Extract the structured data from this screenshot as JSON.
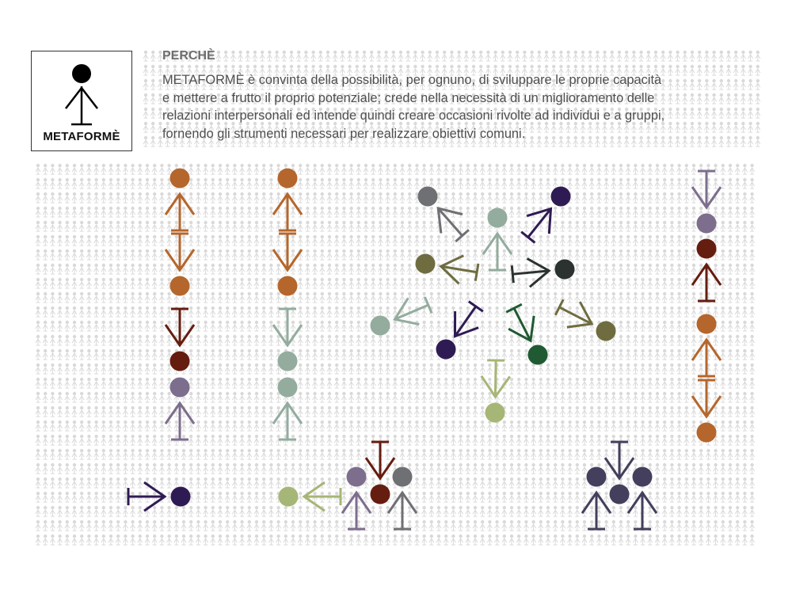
{
  "logo": {
    "name": "METAFORMÈ"
  },
  "section": {
    "heading": "PERCHÈ",
    "lines": [
      "METAFORMÈ è convinta della possibilità,  per ognuno, di sviluppare le proprie capacità",
      "e mettere a frutto il proprio potenziale;  crede nella  necessità  di  un miglioramento delle",
      "relazioni interpersonali ed intende quindi creare occasioni rivolte ad individui e  a gruppi,",
      "fornendo gli strumenti necessari per realizzare obiettivi comuni."
    ]
  },
  "colors": {
    "orange": "#b5662c",
    "maroon": "#651d10",
    "mauve": "#7d6e8d",
    "sage": "#93ac9e",
    "indigo": "#2f1b54",
    "olive": "#6f6d40",
    "lime": "#a6b676",
    "gray": "#6f7074",
    "forest": "#1f5a32",
    "charcoal": "#2b322f",
    "navy": "#433f5c",
    "pattern": "#d9d9d9",
    "logo_figure": "#000000"
  }
}
